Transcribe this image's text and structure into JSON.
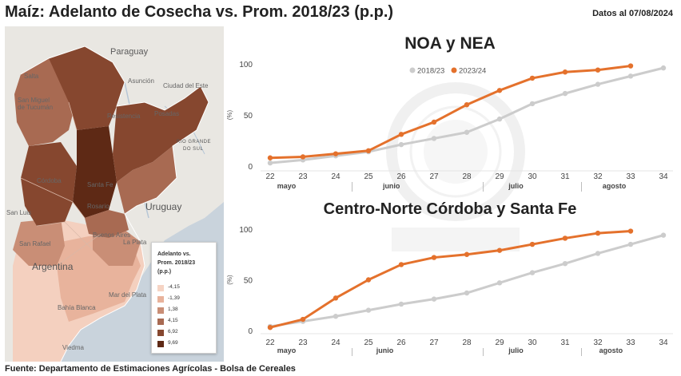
{
  "header": {
    "title": "Maíz: Adelanto de Cosecha vs. Prom. 2018/23 (p.p.)",
    "date": "Datos al 07/08/2024"
  },
  "footer": "Fuente: Departamento de Estimaciones Agrícolas - Bolsa de Cereales",
  "map": {
    "labels": {
      "paraguay": "Paraguay",
      "uruguay": "Uruguay",
      "argentina": "Argentina",
      "rio_grande_do_sul": [
        "RIO GRANDE",
        "DO SUL"
      ],
      "cities": [
        "Salta",
        "San Miguel de Tucumán",
        "Asunción",
        "Ciudad del Este",
        "Resistencia",
        "Posadas",
        "Córdoba",
        "Santa Fe",
        "Rosario",
        "San Luis",
        "San Rafael",
        "Buenos Aires",
        "La Plata",
        "Mar del Plata",
        "Bahía Blanca",
        "Viedma"
      ]
    },
    "legend": {
      "title": [
        "Adelanto vs.",
        "Prom. 2018/23",
        "(p.p.)"
      ],
      "items": [
        {
          "label": "-4,15",
          "color": "#f6d4c4"
        },
        {
          "label": "-1,39",
          "color": "#e8b29b"
        },
        {
          "label": "1,38",
          "color": "#c98e76"
        },
        {
          "label": "4,15",
          "color": "#a86a52"
        },
        {
          "label": "6,92",
          "color": "#86472f"
        },
        {
          "label": "9,69",
          "color": "#5e2915"
        }
      ]
    }
  },
  "chart_data": [
    {
      "type": "line",
      "title": "NOA y NEA",
      "ylabel": "(%)",
      "xlabel": "",
      "x": [
        22,
        23,
        24,
        25,
        26,
        27,
        28,
        29,
        30,
        31,
        32,
        33,
        34
      ],
      "ylim": [
        0,
        100
      ],
      "yticks": [
        0,
        50,
        100
      ],
      "months": [
        {
          "label": "mayo",
          "at": 22.5
        },
        {
          "label": "junio",
          "at": 25.7
        },
        {
          "label": "julio",
          "at": 29.5
        },
        {
          "label": "agosto",
          "at": 32.5
        }
      ],
      "legend_position": "top",
      "series": [
        {
          "name": "2018/23",
          "color": "#cccccc",
          "x": [
            22,
            23,
            24,
            25,
            26,
            27,
            28,
            29,
            30,
            31,
            32,
            33,
            34
          ],
          "values": [
            3,
            6,
            10,
            14,
            21,
            27,
            33,
            46,
            61,
            71,
            80,
            88,
            96
          ]
        },
        {
          "name": "2023/24",
          "color": "#e4712c",
          "x": [
            22,
            23,
            24,
            25,
            26,
            27,
            28,
            29,
            30,
            31,
            32,
            33
          ],
          "values": [
            8,
            9,
            12,
            15,
            31,
            43,
            60,
            74,
            86,
            92,
            94,
            98
          ]
        }
      ]
    },
    {
      "type": "line",
      "title": "Centro-Norte Córdoba y Santa Fe",
      "ylabel": "(%)",
      "xlabel": "",
      "x": [
        22,
        23,
        24,
        25,
        26,
        27,
        28,
        29,
        30,
        31,
        32,
        33,
        34
      ],
      "ylim": [
        0,
        100
      ],
      "yticks": [
        0,
        50,
        100
      ],
      "months": [
        {
          "label": "mayo",
          "at": 22.5
        },
        {
          "label": "junio",
          "at": 25.5
        },
        {
          "label": "julio",
          "at": 29.5
        },
        {
          "label": "agosto",
          "at": 32.4
        }
      ],
      "legend_position": "none",
      "series": [
        {
          "name": "2018/23",
          "color": "#cccccc",
          "x": [
            22,
            23,
            24,
            25,
            26,
            27,
            28,
            29,
            30,
            31,
            32,
            33,
            34
          ],
          "values": [
            4,
            9,
            14,
            20,
            26,
            31,
            37,
            47,
            57,
            66,
            76,
            85,
            94
          ]
        },
        {
          "name": "2023/24",
          "color": "#e4712c",
          "x": [
            22,
            23,
            24,
            25,
            26,
            27,
            28,
            29,
            30,
            31,
            32,
            33
          ],
          "values": [
            3,
            11,
            32,
            50,
            65,
            72,
            75,
            79,
            85,
            91,
            96,
            98
          ]
        }
      ]
    }
  ]
}
